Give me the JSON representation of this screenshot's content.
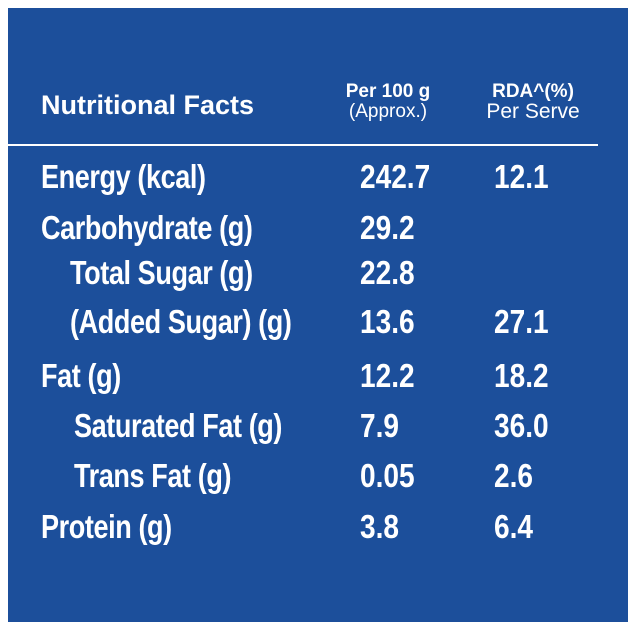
{
  "header": {
    "title": "Nutritional Facts",
    "col1_line1": "Per 100 g",
    "col1_line2": "(Approx.)",
    "col2_line1": "RDA^(%)",
    "col2_line2": "Per Serve"
  },
  "rows": [
    {
      "label": "Energy (kcal)",
      "per100": "242.7",
      "rda": "12.1"
    },
    {
      "label": "Carbohydrate (g)",
      "per100": "29.2",
      "rda": ""
    },
    {
      "label": "Total Sugar (g)",
      "per100": "22.8",
      "rda": ""
    },
    {
      "label": "(Added Sugar) (g)",
      "per100": "13.6",
      "rda": "27.1"
    },
    {
      "label": "Fat (g)",
      "per100": "12.2",
      "rda": "18.2"
    },
    {
      "label": "Saturated Fat (g)",
      "per100": "7.9",
      "rda": "36.0"
    },
    {
      "label": "Trans Fat (g)",
      "per100": "0.05",
      "rda": "2.6"
    },
    {
      "label": "Protein (g)",
      "per100": "3.8",
      "rda": "6.4"
    }
  ],
  "colors": {
    "background": "#1c4f9b",
    "text": "#ffffff"
  }
}
